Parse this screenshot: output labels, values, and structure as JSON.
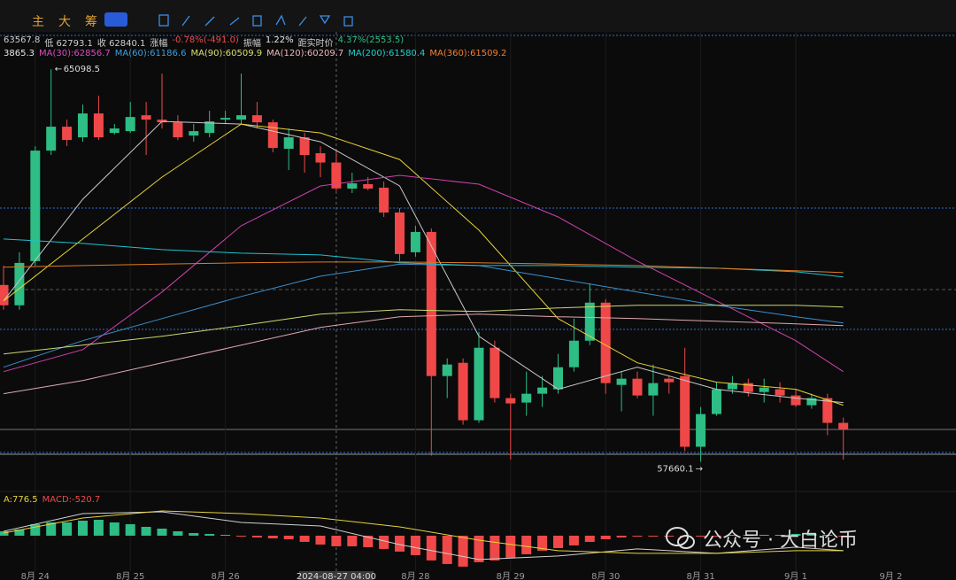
{
  "toolbar": {
    "buttons": [
      "主",
      "大",
      "筹"
    ]
  },
  "chart_data": {
    "type": "candlestick",
    "info_line": [
      {
        "text": "63567.8",
        "color": "#cfcfcf"
      },
      {
        "text": "低 62793.1",
        "color": "#cfcfcf"
      },
      {
        "text": "收 62840.1",
        "color": "#cfcfcf"
      },
      {
        "text": "涨幅",
        "color": "#cfcfcf"
      },
      {
        "text": "-0.78%(-491.0)",
        "color": "#f04a4a"
      },
      {
        "text": "振幅",
        "color": "#cfcfcf"
      },
      {
        "text": "1.22%",
        "color": "#e8e8e8"
      },
      {
        "text": "距实时价",
        "color": "#cfcfcf"
      },
      {
        "text": "4.37%(2553.5)",
        "color": "#2fbf7f"
      }
    ],
    "ma_legend": [
      {
        "text": "3865.3",
        "color": "#e8e8e8"
      },
      {
        "text": "MA(30):62856.7",
        "color": "#d84cc0"
      },
      {
        "text": "MA(60):61186.6",
        "color": "#3aa0e0"
      },
      {
        "text": "MA(90):60509.9",
        "color": "#d8e070"
      },
      {
        "text": "MA(120):60209.7",
        "color": "#f0b8c0"
      },
      {
        "text": "MA(200):61580.4",
        "color": "#20d0d0"
      },
      {
        "text": "MA(360):61509.2",
        "color": "#f08030"
      }
    ],
    "macd_legend": [
      {
        "text": "A:776.5",
        "color": "#e6d23a"
      },
      {
        "text": "MACD:-520.7",
        "color": "#f04a4a"
      }
    ],
    "categories": [
      null,
      null,
      "8月 24",
      null,
      null,
      null,
      null,
      null,
      "8月 25",
      null,
      null,
      null,
      null,
      null,
      "8月 26",
      null,
      null,
      null,
      null,
      null,
      null,
      "2024-08-27 04:00",
      null,
      null,
      null,
      null,
      "8月 28",
      null,
      null,
      null,
      null,
      null,
      "8月 29",
      null,
      null,
      null,
      null,
      null,
      "8月 30",
      null,
      null,
      null,
      null,
      null,
      "8月 31",
      null,
      null,
      null,
      null,
      null,
      "9月 1",
      null,
      null,
      null
    ],
    "extra_x_label": "9月 2",
    "crosshair_index": 21,
    "open": [
      61011,
      60626,
      61463,
      63557,
      64010,
      63809,
      64261,
      63892,
      63926,
      64227,
      64144,
      64093,
      63842,
      63892,
      64144,
      64144,
      64227,
      64093,
      63591,
      63809,
      63507,
      63331.1,
      62837,
      62921,
      62854,
      62384,
      61631,
      62016,
      59285,
      59536,
      58448,
      59821,
      58867,
      58783,
      58950,
      59034,
      59452,
      59955,
      60676,
      59117,
      59235,
      58917,
      59235,
      59285,
      57945,
      58565,
      59034,
      59151,
      58983,
      59034,
      58917,
      58732,
      58867,
      58398
    ],
    "high": [
      61379,
      61631,
      63641,
      65098.5,
      64144,
      64428,
      64596,
      64060,
      64479,
      64479,
      65015,
      64227,
      64060,
      64311,
      64311,
      65015,
      64479,
      64144,
      63976,
      63892,
      63641,
      63567.8,
      63138,
      63055,
      62971,
      62468,
      62133,
      62083,
      59620,
      59620,
      60123,
      59955,
      58950,
      59369,
      59285,
      59704,
      60374,
      61044,
      60743,
      59369,
      59369,
      59503,
      59285,
      59821,
      58699,
      59168,
      59285,
      59235,
      59235,
      59168,
      59034,
      58950,
      58950,
      58498
    ],
    "low": [
      60542,
      60542,
      61379,
      63474,
      63641,
      63725,
      63758,
      63859,
      63892,
      63474,
      63976,
      63758,
      63725,
      63809,
      64060,
      64060,
      63976,
      63524,
      63189,
      63138,
      63055,
      62793.1,
      62753,
      62803,
      62300,
      61463,
      61547,
      57777,
      58867,
      58364,
      58398,
      58783,
      57700,
      58532,
      58699,
      58950,
      59369,
      59871,
      58950,
      58616,
      58867,
      58532,
      58950,
      57861,
      57660.1,
      58532,
      58950,
      58900,
      58783,
      58783,
      58699,
      58666,
      58163,
      57700
    ],
    "close": [
      60626,
      61429,
      63557,
      64010,
      63758,
      64261,
      63809,
      63976,
      64194,
      64144,
      64093,
      63809,
      63926,
      64110,
      64177,
      64227,
      64093,
      63607,
      63809,
      63474,
      63331.1,
      62840.1,
      62937,
      62837,
      62384,
      61597,
      62016,
      59285,
      59503,
      58448,
      59821,
      58867,
      58766,
      58950,
      59067,
      59452,
      59955,
      60676,
      59151,
      59235,
      58917,
      59151,
      59168,
      57945,
      58565,
      59034,
      59151,
      58983,
      59067,
      58917,
      58732,
      58867,
      58398,
      58281
    ],
    "up_color": "#2dbd85",
    "down_color": "#f04848",
    "ylim": [
      57350,
      65320
    ],
    "ma_lines": [
      {
        "color": "#c8c8c8",
        "x": [
          0,
          5,
          10,
          15,
          20,
          25,
          30,
          35,
          40,
          45,
          50,
          53
        ],
        "values": [
          60709,
          62636,
          64110,
          64060,
          63725,
          62887,
          60039,
          59034,
          59452,
          59034,
          58867,
          58783
        ]
      },
      {
        "color": "#e6d23a",
        "x": [
          0,
          5,
          10,
          15,
          20,
          25,
          30,
          35,
          40,
          45,
          50,
          53
        ],
        "values": [
          60709,
          61882,
          63055,
          64060,
          63892,
          63389,
          62049,
          60374,
          59536,
          59168,
          59034,
          58732
        ]
      },
      {
        "color": "#d040b0",
        "x": [
          0,
          5,
          10,
          15,
          20,
          25,
          30,
          35,
          40,
          45,
          50,
          53
        ],
        "values": [
          59369,
          59787,
          60877,
          62133,
          62887,
          63088,
          62921,
          62300,
          61463,
          60709,
          59955,
          59369
        ]
      },
      {
        "color": "#3a90d0",
        "x": [
          0,
          5,
          10,
          15,
          20,
          25,
          30,
          35,
          40,
          45,
          50,
          53
        ],
        "values": [
          59452,
          59955,
          60374,
          60793,
          61178,
          61406,
          61379,
          61128,
          60877,
          60626,
          60408,
          60290
        ]
      },
      {
        "color": "#c8d870",
        "x": [
          0,
          5,
          10,
          15,
          20,
          25,
          30,
          35,
          40,
          45,
          50,
          53
        ],
        "values": [
          59704,
          59871,
          60039,
          60240,
          60458,
          60542,
          60508,
          60575,
          60626,
          60626,
          60626,
          60592
        ]
      },
      {
        "color": "#e0a8b0",
        "x": [
          0,
          5,
          10,
          15,
          20,
          25,
          30,
          35,
          40,
          45,
          50,
          53
        ],
        "values": [
          58950,
          59201,
          59536,
          59871,
          60207,
          60408,
          60458,
          60408,
          60374,
          60324,
          60274,
          60240
        ]
      },
      {
        "color": "#20c0d0",
        "x": [
          0,
          5,
          10,
          15,
          20,
          25,
          30,
          35,
          40,
          45,
          50,
          53
        ],
        "values": [
          61882,
          61798,
          61681,
          61614,
          61580,
          61430,
          61379,
          61379,
          61346,
          61329,
          61262,
          61162
        ]
      },
      {
        "color": "#e07a20",
        "x": [
          0,
          5,
          10,
          15,
          20,
          25,
          30,
          35,
          40,
          45,
          50,
          53
        ],
        "values": [
          61346,
          61379,
          61406,
          61430,
          61446,
          61446,
          61430,
          61406,
          61379,
          61329,
          61279,
          61245
        ]
      }
    ],
    "macd_hist": [
      217,
      304,
      564,
      651,
      651,
      738,
      781,
      651,
      564,
      434,
      347,
      217,
      130,
      87,
      43,
      -20,
      -87,
      -130,
      -174,
      -304,
      -434,
      -520.7,
      -521,
      -564,
      -651,
      -781,
      -955,
      -1215,
      -1389,
      -1519,
      -1302,
      -1215,
      -1085,
      -911,
      -738,
      -608,
      -477,
      -304,
      -174,
      -87,
      -43,
      -43,
      -43,
      -20,
      -20,
      -20,
      43,
      43,
      43,
      43,
      87,
      87,
      43,
      -20
    ],
    "macd_ylim": [
      -1740,
      1520
    ],
    "macd_lines": [
      {
        "color": "#d0d0d0",
        "x": [
          0,
          5,
          10,
          15,
          20,
          25,
          30,
          35,
          40,
          45,
          50,
          53
        ],
        "values": [
          217,
          1085,
          1172,
          651,
          477,
          -434,
          -1172,
          -998,
          -651,
          -868,
          -564,
          -738
        ]
      },
      {
        "color": "#e6d23a",
        "x": [
          0,
          5,
          10,
          15,
          20,
          25,
          30,
          35,
          40,
          45,
          50,
          53
        ],
        "values": [
          130,
          868,
          1215,
          1085,
          868,
          434,
          -217,
          -738,
          -868,
          -868,
          -738,
          -738
        ]
      }
    ]
  },
  "watermark": "公众号 · 大白论币"
}
